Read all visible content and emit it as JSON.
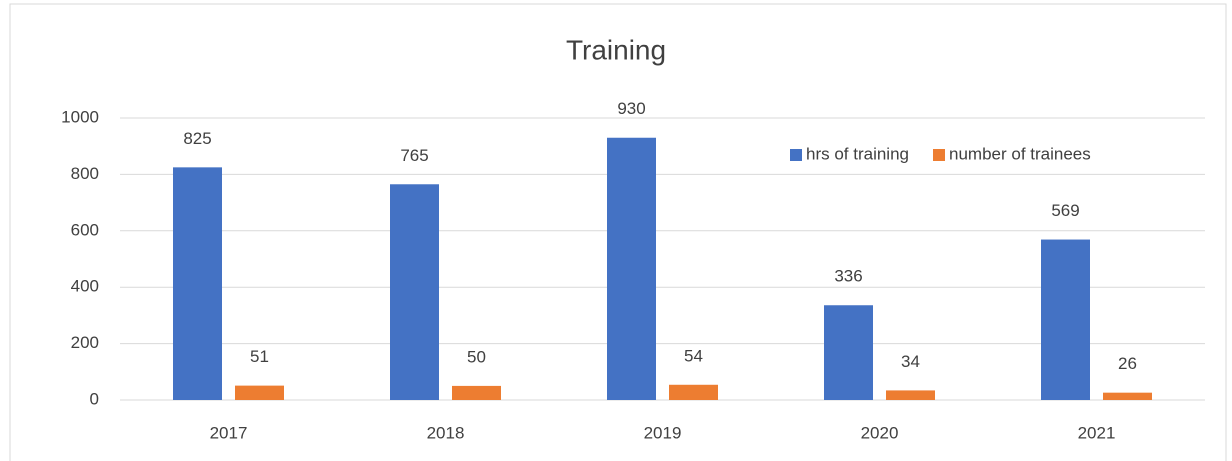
{
  "chart_data": {
    "type": "bar",
    "title": "Training",
    "categories": [
      "2017",
      "2018",
      "2019",
      "2020",
      "2021"
    ],
    "series": [
      {
        "name": "hrs of training",
        "color": "#4472c4",
        "values": [
          825,
          765,
          930,
          336,
          569
        ]
      },
      {
        "name": "number of trainees",
        "color": "#ed7d31",
        "values": [
          51,
          50,
          54,
          34,
          26
        ]
      }
    ],
    "ylim": [
      0,
      1000
    ],
    "yticks": [
      0,
      200,
      400,
      600,
      800,
      1000
    ],
    "grid": true,
    "legend": "upper right"
  }
}
